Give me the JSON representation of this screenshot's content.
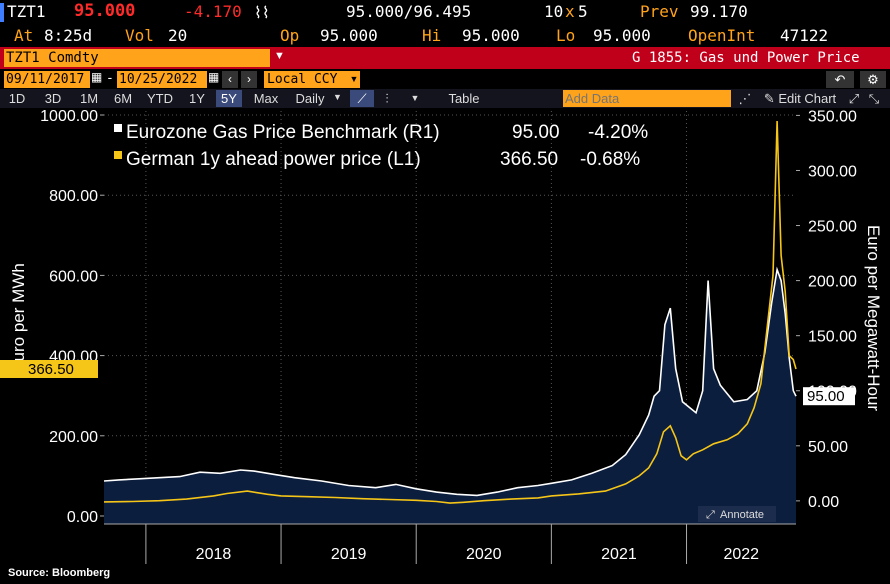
{
  "header": {
    "ticker": "TZT1",
    "last": "95.000",
    "change": "-4.170",
    "bid_ask": "95.000/96.495",
    "size": "10",
    "size_x": "x",
    "size2": "5",
    "prev_label": "Prev",
    "prev": "99.170",
    "at_label": "At",
    "time": "8:25d",
    "vol_label": "Vol",
    "vol": "20",
    "op_label": "Op",
    "op": "95.000",
    "hi_label": "Hi",
    "hi": "95.000",
    "lo_label": "Lo",
    "lo": "95.000",
    "oi_label": "OpenInt",
    "oi": "47122"
  },
  "security": {
    "name": "TZT1 Comdty",
    "dropdown": "▼",
    "function": "G 1855: Gas und Power Price"
  },
  "range": {
    "start": "09/11/2017",
    "sep": "-",
    "end": "10/25/2022",
    "currency": "Local CCY",
    "undo": "↶",
    "settings": "⚙"
  },
  "toolbar": {
    "periods": [
      "1D",
      "3D",
      "1M",
      "6M",
      "YTD",
      "1Y",
      "5Y",
      "Max"
    ],
    "selected": "5Y",
    "freq": "Daily",
    "table": "Table",
    "add_data_placeholder": "Add Data",
    "edit_chart": "Edit Chart"
  },
  "colors": {
    "gas": "#ffffff",
    "power": "#f5c518",
    "area": "#0c1e3e",
    "plot_bg": "#000000",
    "accent": "#ffa31a"
  },
  "chart_data": {
    "type": "line",
    "title": "",
    "legend": [
      {
        "label": "Eurozone Gas Price Benchmark (R1)",
        "last": "95.00",
        "change": "-4.20%"
      },
      {
        "label": "German 1y ahead power price (L1)",
        "last": "366.50",
        "change": "-0.68%"
      }
    ],
    "ylabel_left": "Euro per MWh",
    "ylabel_right": "Euro per Megawatt-Hour",
    "left_ticks": [
      "0.00",
      "200.00",
      "400.00",
      "600.00",
      "800.00",
      "1000.00"
    ],
    "right_ticks": [
      "0.00",
      "50.00",
      "100.00",
      "150.00",
      "200.00",
      "250.00",
      "300.00",
      "350.00"
    ],
    "ylim_left": [
      -20,
      1010
    ],
    "ylim_right": [
      -21,
      354
    ],
    "x_labels": [
      "2018",
      "2019",
      "2020",
      "2021",
      "2022"
    ],
    "xlim": [
      2017.69,
      2022.81
    ],
    "left_last_label": "366.50",
    "right_last_label": "95.00",
    "annotate_label": "Annotate",
    "series": [
      {
        "name": "German 1y ahead power price",
        "axis": "left",
        "x": [
          2017.69,
          2017.9,
          2018.1,
          2018.3,
          2018.5,
          2018.6,
          2018.75,
          2018.9,
          2019.0,
          2019.2,
          2019.4,
          2019.6,
          2019.8,
          2020.0,
          2020.15,
          2020.25,
          2020.35,
          2020.5,
          2020.7,
          2020.9,
          2021.0,
          2021.2,
          2021.4,
          2021.55,
          2021.65,
          2021.72,
          2021.78,
          2021.83,
          2021.88,
          2021.92,
          2021.96,
          2022.0,
          2022.05,
          2022.12,
          2022.2,
          2022.3,
          2022.38,
          2022.45,
          2022.5,
          2022.55,
          2022.6,
          2022.64,
          2022.67,
          2022.7,
          2022.73,
          2022.76,
          2022.79,
          2022.81
        ],
        "values": [
          35,
          36,
          38,
          42,
          50,
          56,
          62,
          54,
          50,
          48,
          46,
          43,
          41,
          39,
          36,
          32,
          34,
          38,
          42,
          45,
          50,
          55,
          62,
          80,
          100,
          120,
          155,
          210,
          225,
          195,
          150,
          140,
          155,
          165,
          180,
          190,
          205,
          230,
          270,
          330,
          480,
          600,
          985,
          650,
          560,
          400,
          390,
          366.5
        ]
      },
      {
        "name": "Eurozone Gas Price Benchmark",
        "axis": "right",
        "x": [
          2017.69,
          2017.8,
          2017.95,
          2018.1,
          2018.25,
          2018.4,
          2018.55,
          2018.7,
          2018.8,
          2018.95,
          2019.1,
          2019.3,
          2019.5,
          2019.7,
          2019.85,
          2020.0,
          2020.15,
          2020.3,
          2020.45,
          2020.6,
          2020.75,
          2020.9,
          2021.0,
          2021.15,
          2021.3,
          2021.45,
          2021.55,
          2021.65,
          2021.72,
          2021.76,
          2021.8,
          2021.84,
          2021.88,
          2021.92,
          2021.97,
          2022.02,
          2022.07,
          2022.12,
          2022.16,
          2022.2,
          2022.25,
          2022.35,
          2022.45,
          2022.52,
          2022.58,
          2022.63,
          2022.67,
          2022.7,
          2022.73,
          2022.76,
          2022.79,
          2022.81
        ],
        "values": [
          18,
          19,
          20,
          21,
          22,
          26,
          25,
          28,
          27,
          24,
          21,
          18,
          14,
          12,
          15,
          11,
          8,
          6,
          5,
          8,
          12,
          14,
          16,
          19,
          25,
          32,
          42,
          60,
          78,
          95,
          100,
          160,
          175,
          120,
          90,
          85,
          80,
          100,
          200,
          120,
          105,
          90,
          92,
          100,
          135,
          180,
          210,
          200,
          170,
          130,
          100,
          95
        ]
      }
    ]
  },
  "footer": {
    "source": "Source: Bloomberg"
  }
}
